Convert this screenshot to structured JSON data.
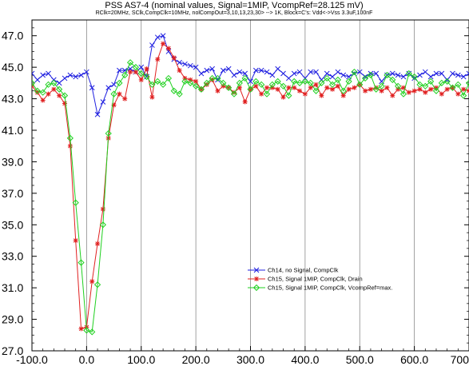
{
  "chart_data": {
    "type": "line",
    "title": "PSS AS7-4 (nominal values, Signal=1MIP, VcompRef=28.125 mV)",
    "subtitle": "RClk=20MHz, SClk,CompClk=10MHz, nolCompOut=3,10,13,23,30> --> 1K, Block=C's: Vdd<->Vss 3.3uF,100nF",
    "xlabel": "",
    "ylabel": "",
    "xlim": [
      -100,
      700
    ],
    "ylim": [
      27.0,
      48.0
    ],
    "x_ticks": [
      -100,
      0,
      100,
      200,
      300,
      400,
      500,
      600,
      700
    ],
    "x_tick_labels": [
      "-100.0",
      "0.0",
      "100.0",
      "200.0",
      "300.0",
      "400.0",
      "500.0",
      "600.0",
      "700"
    ],
    "y_ticks": [
      27,
      29,
      31,
      33,
      35,
      37,
      39,
      41,
      43,
      45,
      47
    ],
    "y_tick_labels": [
      "27.0",
      "29.0",
      "31.0",
      "33.0",
      "35.0",
      "37.0",
      "39.0",
      "41.0",
      "43.0",
      "45.0",
      "47.0"
    ],
    "grid": "vertical",
    "legend_position": "lower-right",
    "x": [
      -110,
      -100,
      -90,
      -80,
      -70,
      -60,
      -50,
      -40,
      -30,
      -20,
      -10,
      0,
      10,
      20,
      30,
      40,
      50,
      60,
      70,
      80,
      90,
      100,
      110,
      120,
      130,
      140,
      150,
      160,
      170,
      180,
      190,
      200,
      210,
      220,
      230,
      240,
      250,
      260,
      270,
      280,
      290,
      300,
      310,
      320,
      330,
      340,
      350,
      360,
      370,
      380,
      390,
      400,
      410,
      420,
      430,
      440,
      450,
      460,
      470,
      480,
      490,
      500,
      510,
      520,
      530,
      540,
      550,
      560,
      570,
      580,
      590,
      600,
      610,
      620,
      630,
      640,
      650,
      660,
      670,
      680,
      690,
      700
    ],
    "series": [
      {
        "name": "Ch14, no Signal, CompClk",
        "color": "#2020e0",
        "marker": "x",
        "values": [
          44.8,
          44.6,
          44.2,
          44.5,
          44.6,
          44.2,
          44.0,
          44.3,
          44.5,
          44.4,
          44.5,
          44.7,
          43.7,
          42.0,
          42.8,
          43.7,
          43.9,
          44.8,
          44.8,
          44.9,
          44.7,
          45.0,
          44.4,
          46.4,
          46.9,
          47.0,
          46.0,
          45.5,
          45.3,
          45.2,
          45.1,
          45.0,
          44.6,
          44.8,
          44.9,
          44.2,
          44.8,
          44.9,
          44.5,
          44.7,
          44.6,
          44.1,
          44.8,
          44.8,
          44.7,
          44.5,
          44.9,
          44.6,
          44.3,
          44.6,
          44.7,
          44.3,
          44.7,
          44.7,
          44.2,
          44.6,
          44.4,
          44.7,
          44.5,
          44.4,
          44.6,
          44.7,
          44.4,
          44.6,
          44.6,
          44.1,
          44.5,
          44.6,
          44.5,
          44.4,
          44.6,
          44.3,
          44.5,
          44.7,
          44.4,
          44.6,
          44.6,
          44.2,
          44.6,
          44.5,
          44.4,
          44.6
        ]
      },
      {
        "name": "Ch15, Signal 1MIP, CompClk, Drain",
        "color": "#e02020",
        "marker": "*",
        "values": [
          43.9,
          43.8,
          43.4,
          42.9,
          43.3,
          43.6,
          43.2,
          42.7,
          40.0,
          34.0,
          28.4,
          28.5,
          31.4,
          33.8,
          36.0,
          40.5,
          42.6,
          43.3,
          43.0,
          44.7,
          44.7,
          44.2,
          44.9,
          43.1,
          45.5,
          46.5,
          46.2,
          45.6,
          44.8,
          44.3,
          44.2,
          44.1,
          43.6,
          43.9,
          44.2,
          43.5,
          43.8,
          43.7,
          43.4,
          43.7,
          42.8,
          43.6,
          43.8,
          43.3,
          43.7,
          43.7,
          43.6,
          43.1,
          43.7,
          43.7,
          43.5,
          43.3,
          43.7,
          43.9,
          43.2,
          43.7,
          43.6,
          43.8,
          43.2,
          43.6,
          43.7,
          43.9,
          43.5,
          43.6,
          43.7,
          43.5,
          43.7,
          43.2,
          43.6,
          43.7,
          43.4,
          43.5,
          43.6,
          43.4,
          43.6,
          43.7,
          43.3,
          43.6,
          43.7,
          43.3,
          43.6,
          43.5
        ]
      },
      {
        "name": "Ch15, Signal 1MIP, CompClk, VcompRef=max.",
        "color": "#20d020",
        "marker": "diamond",
        "values": [
          44.1,
          44.0,
          43.5,
          43.4,
          43.9,
          44.0,
          43.6,
          43.2,
          40.5,
          36.4,
          32.6,
          28.3,
          28.2,
          31.2,
          35.0,
          40.8,
          43.3,
          44.0,
          44.5,
          45.3,
          45.0,
          44.6,
          44.4,
          43.9,
          44.1,
          43.9,
          44.3,
          43.5,
          43.3,
          44.1,
          44.0,
          43.8,
          43.6,
          44.0,
          44.3,
          44.3,
          44.0,
          43.7,
          43.3,
          44.0,
          44.3,
          43.6,
          44.1,
          43.9,
          43.3,
          43.9,
          44.1,
          43.8,
          43.2,
          44.1,
          44.0,
          44.1,
          44.0,
          43.5,
          44.0,
          44.3,
          43.9,
          44.2,
          43.5,
          44.1,
          44.7,
          43.9,
          44.3,
          44.5,
          43.6,
          43.8,
          44.5,
          44.2,
          43.8,
          43.3,
          44.6,
          44.4,
          43.9,
          43.8,
          44.1,
          43.5,
          44.0,
          44.1,
          43.7,
          43.9,
          43.2,
          44.0
        ]
      }
    ]
  }
}
